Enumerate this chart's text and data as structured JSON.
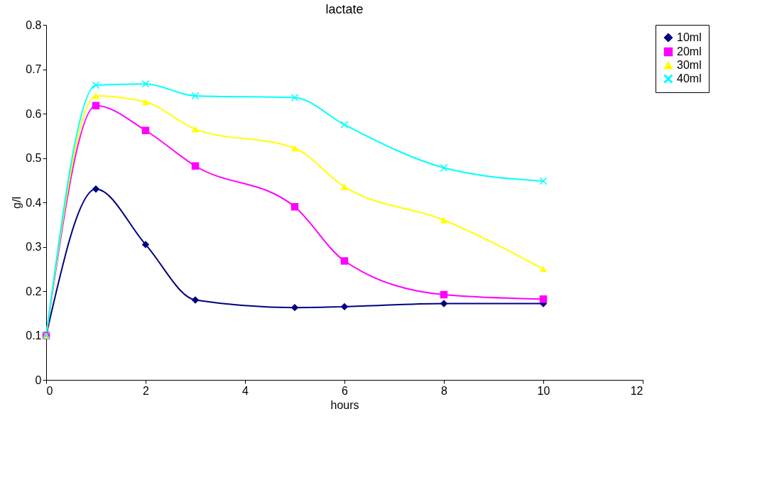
{
  "chart_data": {
    "type": "line",
    "title": "lactate",
    "xlabel": "hours",
    "ylabel": "g/l",
    "x": [
      0,
      1,
      2,
      3,
      5,
      6,
      8,
      10
    ],
    "series": [
      {
        "name": "10ml",
        "color": "#000080",
        "marker": "diamond",
        "values": [
          0.1,
          0.43,
          0.305,
          0.18,
          0.163,
          0.165,
          0.172,
          0.172
        ]
      },
      {
        "name": "20ml",
        "color": "#ff00ff",
        "marker": "square",
        "values": [
          0.1,
          0.618,
          0.562,
          0.482,
          0.39,
          0.268,
          0.192,
          0.182
        ]
      },
      {
        "name": "30ml",
        "color": "#ffff00",
        "marker": "triangle",
        "values": [
          0.1,
          0.64,
          0.626,
          0.565,
          0.522,
          0.435,
          0.36,
          0.25
        ]
      },
      {
        "name": "40ml",
        "color": "#00ffff",
        "marker": "cross",
        "values": [
          0.1,
          0.664,
          0.667,
          0.64,
          0.636,
          0.575,
          0.478,
          0.448
        ]
      }
    ],
    "xlim": [
      0,
      12
    ],
    "xticks": [
      0,
      2,
      4,
      6,
      8,
      10,
      12
    ],
    "ylim": [
      0,
      0.8
    ],
    "yticks": [
      0,
      0.1,
      0.2,
      0.3,
      0.4,
      0.5,
      0.6,
      0.7,
      0.8
    ],
    "grid": false,
    "legend": "right"
  }
}
